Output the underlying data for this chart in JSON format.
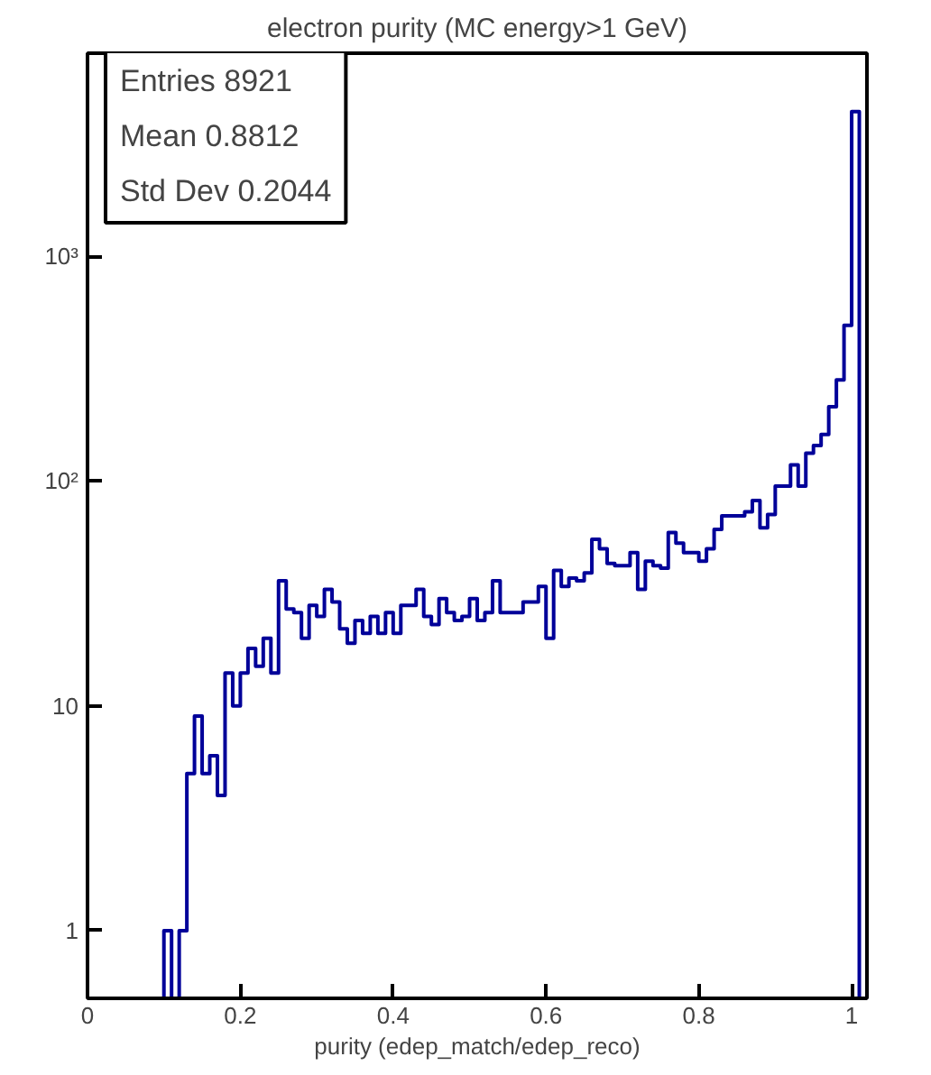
{
  "chart_data": {
    "type": "histogram",
    "title": "electron purity (MC energy>1 GeV)",
    "xlabel": "purity (edep_match/edep_reco)",
    "bins": [
      0.1,
      0.11,
      0.12,
      0.13,
      0.14,
      0.15,
      0.16,
      0.17,
      0.18,
      0.19,
      0.2,
      0.21,
      0.22,
      0.23,
      0.24,
      0.25,
      0.26,
      0.27,
      0.28,
      0.29,
      0.3,
      0.31,
      0.32,
      0.33,
      0.34,
      0.35,
      0.36,
      0.37,
      0.38,
      0.39,
      0.4,
      0.41,
      0.42,
      0.43,
      0.44,
      0.45,
      0.46,
      0.47,
      0.48,
      0.49,
      0.5,
      0.51,
      0.52,
      0.53,
      0.54,
      0.55,
      0.56,
      0.57,
      0.58,
      0.59,
      0.6,
      0.61,
      0.62,
      0.63,
      0.64,
      0.65,
      0.66,
      0.67,
      0.68,
      0.69,
      0.7,
      0.71,
      0.72,
      0.73,
      0.74,
      0.75,
      0.76,
      0.77,
      0.78,
      0.79,
      0.8,
      0.81,
      0.82,
      0.83,
      0.84,
      0.85,
      0.86,
      0.87,
      0.88,
      0.89,
      0.9,
      0.91,
      0.92,
      0.93,
      0.94,
      0.95,
      0.96,
      0.97,
      0.98,
      0.99,
      1.0,
      1.01
    ],
    "values": [
      1,
      null,
      1,
      5,
      9,
      5,
      6,
      4,
      14,
      10,
      14,
      18,
      15,
      20,
      14,
      36,
      27,
      26,
      20,
      28,
      25,
      33,
      29,
      22,
      19,
      24,
      21,
      25,
      21,
      26,
      21,
      28,
      28,
      33,
      25,
      23,
      30,
      26,
      24,
      25,
      30,
      24,
      26,
      36,
      26,
      26,
      26,
      29,
      29,
      34,
      20,
      40,
      34,
      37,
      36,
      39,
      55,
      50,
      43,
      42,
      42,
      48,
      33,
      44,
      42,
      41,
      59,
      53,
      48,
      48,
      44,
      50,
      61,
      70,
      70,
      70,
      73,
      82,
      62,
      71,
      95,
      95,
      118,
      95,
      133,
      144,
      161,
      214,
      282,
      493,
      4400
    ],
    "color": "#000099",
    "xlim": [
      0,
      1.02
    ],
    "xticks": [
      0,
      0.2,
      0.4,
      0.6,
      0.8,
      1
    ],
    "ylim": [
      0.5,
      8000
    ],
    "yticks": [
      1,
      10,
      {
        "value": 100,
        "label": "10²"
      },
      {
        "value": 1000,
        "label": "10³"
      }
    ],
    "log": "y",
    "grid": false,
    "annotations": [
      "Entries 8921",
      "Mean 0.8812",
      "Std Dev 0.2044"
    ]
  }
}
